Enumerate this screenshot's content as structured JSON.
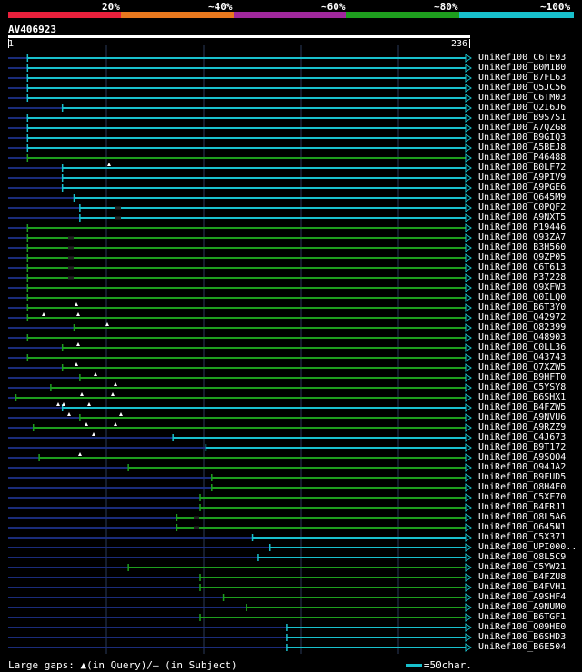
{
  "legend": {
    "labels": [
      "20%",
      "~40%",
      "~60%",
      "~80%",
      "~100%"
    ],
    "colors": [
      "#e8203c",
      "#e8781e",
      "#a0289c",
      "#1e9e1e",
      "#18c0cc"
    ]
  },
  "query": {
    "name": "AV406923",
    "start": "1",
    "end": "236"
  },
  "colors": {
    "background": "#000000",
    "low_identity": "#1a2c7a",
    "grid": "#2a3a5a",
    "gap_marker": "#ffffff"
  },
  "hits": [
    {
      "label": "UniRef100_C6TE03",
      "class": "cyan",
      "start": 10
    },
    {
      "label": "UniRef100_B0M1B0",
      "class": "cyan",
      "start": 10
    },
    {
      "label": "UniRef100_B7FL63",
      "class": "cyan",
      "start": 10
    },
    {
      "label": "UniRef100_Q5JC56",
      "class": "cyan",
      "start": 10
    },
    {
      "label": "UniRef100_C6TM03",
      "class": "cyan",
      "start": 10
    },
    {
      "label": "UniRef100_Q2I6J6",
      "class": "cyan",
      "start": 28
    },
    {
      "label": "UniRef100_B9S7S1",
      "class": "cyan",
      "start": 10
    },
    {
      "label": "UniRef100_A7QZG8",
      "class": "cyan",
      "start": 10
    },
    {
      "label": "UniRef100_B9GIQ3",
      "class": "cyan",
      "start": 10
    },
    {
      "label": "UniRef100_A5BEJ8",
      "class": "cyan",
      "start": 10
    },
    {
      "label": "UniRef100_P46488",
      "class": "green",
      "start": 10
    },
    {
      "label": "UniRef100_B0LF72",
      "class": "cyan",
      "start": 28
    },
    {
      "label": "UniRef100_A9PIV9",
      "class": "cyan",
      "start": 28
    },
    {
      "label": "UniRef100_A9PGE6",
      "class": "cyan",
      "start": 28
    },
    {
      "label": "UniRef100_Q645M9",
      "class": "cyan",
      "start": 34
    },
    {
      "label": "UniRef100_C0PQF2",
      "class": "cyan",
      "start": 37
    },
    {
      "label": "UniRef100_A9NXT5",
      "class": "cyan",
      "start": 37
    },
    {
      "label": "UniRef100_P19446",
      "class": "green",
      "start": 10
    },
    {
      "label": "UniRef100_Q93ZA7",
      "class": "green",
      "start": 10
    },
    {
      "label": "UniRef100_B3H560",
      "class": "green",
      "start": 10
    },
    {
      "label": "UniRef100_Q9ZP05",
      "class": "green",
      "start": 10
    },
    {
      "label": "UniRef100_C6T613",
      "class": "green",
      "start": 10
    },
    {
      "label": "UniRef100_P37228",
      "class": "green",
      "start": 10
    },
    {
      "label": "UniRef100_Q9XFW3",
      "class": "green",
      "start": 10
    },
    {
      "label": "UniRef100_Q0ILQ0",
      "class": "green",
      "start": 10
    },
    {
      "label": "UniRef100_B6T3Y0",
      "class": "green",
      "start": 10
    },
    {
      "label": "UniRef100_Q42972",
      "class": "green",
      "start": 10
    },
    {
      "label": "UniRef100_O82399",
      "class": "green",
      "start": 34
    },
    {
      "label": "UniRef100_O48903",
      "class": "green",
      "start": 10
    },
    {
      "label": "UniRef100_C0LL36",
      "class": "green",
      "start": 28
    },
    {
      "label": "UniRef100_O43743",
      "class": "green",
      "start": 10
    },
    {
      "label": "UniRef100_Q7XZW5",
      "class": "green",
      "start": 28
    },
    {
      "label": "UniRef100_B9HFT0",
      "class": "green",
      "start": 37
    },
    {
      "label": "UniRef100_C5YSY8",
      "class": "green",
      "start": 22
    },
    {
      "label": "UniRef100_B6SHX1",
      "class": "green",
      "start": 4
    },
    {
      "label": "UniRef100_B4FZW5",
      "class": "cyan",
      "start": 28
    },
    {
      "label": "UniRef100_A9NVU6",
      "class": "green",
      "start": 37
    },
    {
      "label": "UniRef100_A9RZZ9",
      "class": "green",
      "start": 13
    },
    {
      "label": "UniRef100_C4J673",
      "class": "cyan",
      "start": 85
    },
    {
      "label": "UniRef100_B9T172",
      "class": "cyan",
      "start": 102
    },
    {
      "label": "UniRef100_A9SQQ4",
      "class": "green",
      "start": 16
    },
    {
      "label": "UniRef100_Q94JA2",
      "class": "green",
      "start": 62
    },
    {
      "label": "UniRef100_B9FUD5",
      "class": "green",
      "start": 105
    },
    {
      "label": "UniRef100_Q8H4E0",
      "class": "green",
      "start": 105
    },
    {
      "label": "UniRef100_C5XF70",
      "class": "green",
      "start": 99
    },
    {
      "label": "UniRef100_B4FRJ1",
      "class": "green",
      "start": 99
    },
    {
      "label": "UniRef100_Q8L5A6",
      "class": "green",
      "start": 87
    },
    {
      "label": "UniRef100_Q645N1",
      "class": "green",
      "start": 87
    },
    {
      "label": "UniRef100_C5X371",
      "class": "cyan",
      "start": 126
    },
    {
      "label": "UniRef100_UPI000..",
      "class": "cyan",
      "start": 135
    },
    {
      "label": "UniRef100_Q8L5C9",
      "class": "cyan",
      "start": 129
    },
    {
      "label": "UniRef100_C5YW21",
      "class": "green",
      "start": 62
    },
    {
      "label": "UniRef100_B4FZU8",
      "class": "green",
      "start": 99
    },
    {
      "label": "UniRef100_B4FVH1",
      "class": "green",
      "start": 99
    },
    {
      "label": "UniRef100_A9SHF4",
      "class": "green",
      "start": 111
    },
    {
      "label": "UniRef100_A9NUM0",
      "class": "green",
      "start": 123
    },
    {
      "label": "UniRef100_B6TGF1",
      "class": "green",
      "start": 99
    },
    {
      "label": "UniRef100_Q09HE0",
      "class": "cyan",
      "start": 144
    },
    {
      "label": "UniRef100_B6SHD3",
      "class": "cyan",
      "start": 144
    },
    {
      "label": "UniRef100_B6E504",
      "class": "cyan",
      "start": 144
    }
  ],
  "footer": {
    "large_gaps": "Large gaps: ▲(in Query)/– (in Subject)",
    "scale": "=50char."
  }
}
